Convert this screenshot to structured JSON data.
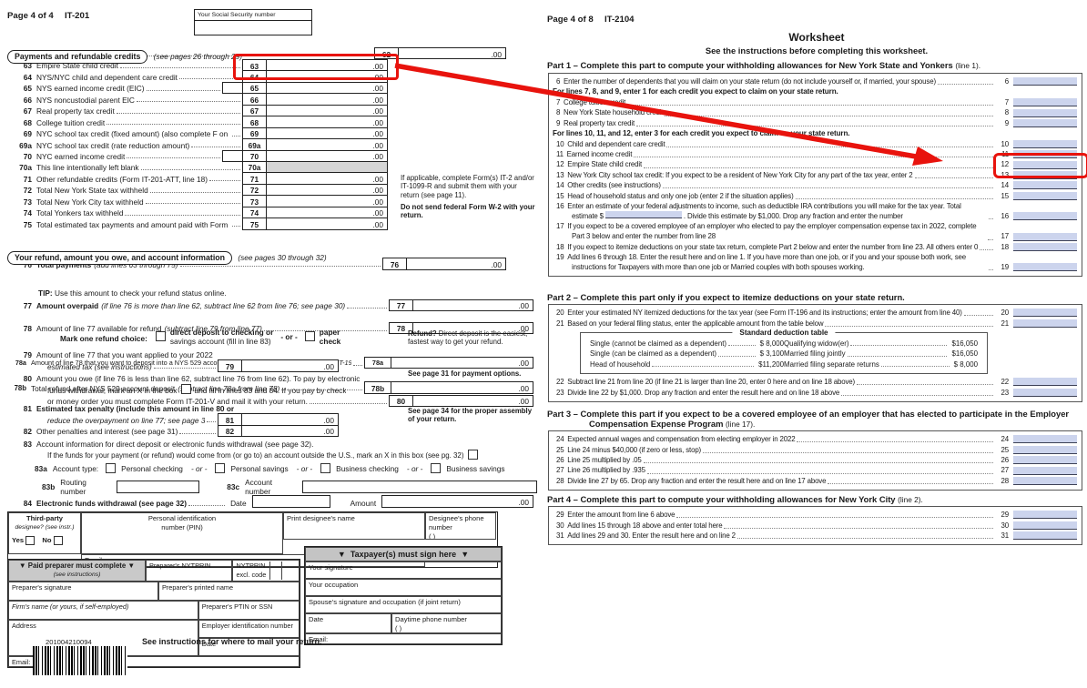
{
  "annotation_color": "#e8130d",
  "left_form": {
    "page_label": "Page 4 of 4",
    "form_id": "IT-201",
    "ssn_label": "Your Social Security number",
    "line62": {
      "num": "62",
      "label": "Enter amount from line 61",
      "cents": ".00"
    },
    "payments_section": {
      "title": "Payments and refundable credits",
      "note": "(see pages 26 through 29)"
    },
    "credit_lines": [
      {
        "num": "63",
        "label": "Empire State child credit",
        "cents": ".00",
        "highlight": true
      },
      {
        "num": "64",
        "label": "NYS/NYC child and dependent care credit",
        "cents": ".00"
      },
      {
        "num": "65",
        "label": "NYS earned income credit (EIC)",
        "cents": ".00",
        "stub": true
      },
      {
        "num": "66",
        "label": "NYS noncustodial parent EIC",
        "cents": ".00"
      },
      {
        "num": "67",
        "label": "Real property tax credit",
        "cents": ".00"
      },
      {
        "num": "68",
        "label": "College tuition credit",
        "cents": ".00"
      },
      {
        "num": "69",
        "label": "NYC school tax credit (fixed amount) (also complete F on page 1)",
        "cents": ".00"
      },
      {
        "num": "69a",
        "label": "NYC school tax credit (rate reduction amount)",
        "cents": ".00"
      },
      {
        "num": "70",
        "label": "NYC earned income credit",
        "cents": ".00",
        "stub": true
      },
      {
        "num": "70a",
        "label": "This line intentionally left blank",
        "gray": true
      },
      {
        "num": "71",
        "label": "Other refundable credits (Form IT-201-ATT, line 18)",
        "cents": ".00"
      },
      {
        "num": "72",
        "label": "Total New York State tax withheld",
        "cents": ".00"
      },
      {
        "num": "73",
        "label": "Total New York City tax withheld",
        "cents": ".00"
      },
      {
        "num": "74",
        "label": "Total Yonkers tax withheld",
        "cents": ".00"
      },
      {
        "num": "75",
        "label": "Total estimated tax payments and amount paid with Form IT-370",
        "cents": ".00"
      }
    ],
    "side_note_1": "If applicable, complete Form(s) IT-2 and/or IT-1099-R and submit them with your return (see page 11).",
    "side_note_2": "Do not send federal Form W-2 with your return.",
    "line76": {
      "num": "76",
      "label": "Total payments",
      "note": "(add lines 63 through 75)",
      "cents": ".00"
    },
    "refund_section": {
      "title": "Your refund, amount you owe, and account information",
      "note": "(see pages 30 through 32)"
    },
    "line77": {
      "num": "77",
      "label": "Amount overpaid",
      "note": "(if line 76 is more than line 62, subtract line 62 from line 76; see page 30)",
      "cents": ".00"
    },
    "line78": {
      "num": "78",
      "label": "Amount of line 77 available for refund",
      "note": "(subtract line 79 from line 77)",
      "cents": ".00"
    },
    "tip_bold": "TIP:",
    "tip_text": "Use this amount to check your refund status online.",
    "line78a": {
      "num": "78a",
      "label": "Amount of line 78 that you want to deposit into a NYS 529 account",
      "note": "(Form IT-195, line 4) (also submit Form IT-195)",
      "cents": ".00"
    },
    "line78b": {
      "num": "78b",
      "label": "Total refund after NYS 529 account deposit",
      "note": "(subtract line 78a from line 78)",
      "cents": ".00"
    },
    "refund_choice": {
      "label": "Mark one refund choice:",
      "opt1_line1": "direct deposit to checking or",
      "opt1_line2": "savings account (fill in line 83)",
      "separator": "- or -",
      "opt2_line1": "paper",
      "opt2_line2": "check"
    },
    "note_refund_bold": "Refund?",
    "note_refund": "Direct deposit is the easiest, fastest way to get your refund.",
    "note_payment": "See page 31 for payment options.",
    "note_assembly": "See page 34 for the proper assembly of your return.",
    "line79": {
      "num": "79",
      "label_1": "Amount of line 77 that you want applied to your 2022",
      "label_2": "estimated tax (see instructions)",
      "cents": ".00"
    },
    "line80": {
      "num": "80",
      "label_1": "Amount you owe (if line 76 is less than line 62, subtract line 76 from line 62). To pay by electronic",
      "label_2_pre": "funds withdrawal, mark an X in the box",
      "label_2_post": "and fill in lines 83 and 84. If you pay by check",
      "label_3": "or money order you must complete Form IT-201-V and mail it with your return.",
      "cents": ".00"
    },
    "line81": {
      "num": "81",
      "label_1": "Estimated tax penalty (include this amount in line 80 or",
      "label_2": "reduce the overpayment on line 77; see page 31)",
      "cents": ".00"
    },
    "line82": {
      "num": "82",
      "label": "Other penalties and interest (see page 31)",
      "cents": ".00"
    },
    "line83": {
      "num": "83",
      "label_1": "Account information for direct deposit or electronic funds withdrawal (see page 32).",
      "label_2": "If the funds for your payment (or refund) would come from (or go to) an account outside the U.S., mark an X in this box (see pg. 32)"
    },
    "line83a": {
      "num": "83a",
      "label": "Account type:",
      "separator": "- or -",
      "options": [
        "Personal checking",
        "Personal savings",
        "Business checking",
        "Business savings"
      ]
    },
    "line83b": {
      "num": "83b",
      "label": "Routing number"
    },
    "line83c": {
      "num": "83c",
      "label": "Account number"
    },
    "line84": {
      "num": "84",
      "label": "Electronic funds withdrawal (see page 32)",
      "date_label": "Date",
      "amount_label": "Amount",
      "cents": ".00"
    },
    "designee": {
      "title_1": "Third-party",
      "title_2": "designee? (see instr.)",
      "yes": "Yes",
      "no": "No",
      "name_label": "Print designee's name",
      "phone_label": "Designee's phone number",
      "phone_paren": "(        )",
      "pin_label_1": "Personal identification",
      "pin_label_2": "number (PIN)",
      "email_label": "Email:"
    },
    "preparer": {
      "heading": "Paid preparer must complete",
      "heading_note": "(see instructions)",
      "nytprin": "Preparer's NYTPRIN",
      "excl_1": "NYTPRIN",
      "excl_2": "excl. code",
      "signature": "Preparer's signature",
      "printed_name": "Preparer's printed name",
      "firm": "Firm's name (or yours, if self-employed)",
      "ptin": "Preparer's PTIN or SSN",
      "address": "Address",
      "ein": "Employer identification number",
      "date": "Date",
      "email": "Email:"
    },
    "taxpayer": {
      "heading": "Taxpayer(s) must sign here",
      "signature": "Your signature",
      "occupation": "Your occupation",
      "spouse": "Spouse's signature and occupation (if joint return)",
      "date": "Date",
      "phone": "Daytime phone number",
      "phone_paren": "(        )",
      "email": "Email:"
    },
    "footer": {
      "barcode_number": "201004210094",
      "mail_note": "See instructions for where to mail your return."
    }
  },
  "right_form": {
    "page_label": "Page 4 of 8",
    "form_id": "IT-2104",
    "title": "Worksheet",
    "subtitle": "See the instructions before completing this worksheet.",
    "part1": {
      "title": "Part 1 – Complete this part to compute your withholding allowances for New York State and Yonkers",
      "suffix": "(line 1).",
      "lines": [
        {
          "num": "6",
          "label": "Enter the number of dependents that you will claim on your state return (do not include yourself or, if married, your spouse)"
        },
        {
          "group": "For lines 7, 8, and 9, enter 1 for each credit you expect to claim on your state return."
        },
        {
          "num": "7",
          "label": "College tuition credit"
        },
        {
          "num": "8",
          "label": "New York State household credit"
        },
        {
          "num": "9",
          "label": "Real property tax credit"
        },
        {
          "group": "For lines 10, 11, and 12, enter 3 for each credit you expect to claim on your state return."
        },
        {
          "num": "10",
          "label": "Child and dependent care credit"
        },
        {
          "num": "11",
          "label": "Earned income credit"
        },
        {
          "num": "12",
          "label": "Empire State child credit",
          "highlight": true
        },
        {
          "num": "13",
          "label": "New York City school tax credit: If you expect to be a resident of New York City for any part of the tax year, enter 2"
        },
        {
          "num": "14",
          "label": "Other credits (see instructions)"
        },
        {
          "num": "15",
          "label": "Head of household status and only one job (enter 2 if the situation applies)"
        },
        {
          "num": "16",
          "label_pre": "Enter an estimate of your federal adjustments to income, such as deductible IRA contributions you will make for the tax year. Total estimate $",
          "label_post": ". Divide this estimate by $1,000. Drop any fraction and enter the number"
        },
        {
          "num": "17",
          "label": "If you expect to be a covered employee of an employer who elected to pay the employer compensation expense tax in 2022, complete Part 3 below and enter the number from line 28"
        },
        {
          "num": "18",
          "label": "If you expect to itemize deductions on your state tax return, complete Part 2 below and enter the number from line 23. All others enter 0"
        },
        {
          "num": "19",
          "label": "Add lines 6 through 18. Enter the result here and on line 1. If you have more than one job, or if you and your spouse both work, see instructions for Taxpayers with more than one job or Married couples with both spouses working."
        }
      ]
    },
    "part2": {
      "title": "Part 2 – Complete this part only if you expect to itemize deductions on your state return.",
      "suffix": "",
      "lines_top": [
        {
          "num": "20",
          "label": "Enter your estimated NY itemized deductions for the tax year (see Form IT-196 and its instructions; enter the amount from line 40)"
        },
        {
          "num": "21",
          "label": "Based on your federal filing status, enter the applicable amount from the table below"
        }
      ],
      "table": {
        "title": "Standard deduction table",
        "rows": [
          {
            "l": "Single (cannot be claimed as a dependent)",
            "lv": "$  8,000",
            "r": "Qualifying widow(er)",
            "rv": "$16,050"
          },
          {
            "l": "Single (can be claimed as a dependent)",
            "lv": "$  3,100",
            "r": "Married filing jointly",
            "rv": "$16,050"
          },
          {
            "l": "Head of household",
            "lv": "$11,200",
            "r": "Married filing separate returns",
            "rv": "$  8,000"
          }
        ]
      },
      "lines_bottom": [
        {
          "num": "22",
          "label": "Subtract line 21 from line 20 (if line 21 is larger than line 20, enter 0 here and on line 18 above)"
        },
        {
          "num": "23",
          "label": "Divide line 22 by $1,000. Drop any fraction and enter the result here and on line 18 above"
        }
      ]
    },
    "part3": {
      "title": "Part 3 – Complete this part if you expect to be a covered employee of an employer that has elected to participate in the Employer Compensation Expense Program",
      "suffix": "(line 17).",
      "lines": [
        {
          "num": "24",
          "label": "Expected annual wages and compensation from electing employer in 2022"
        },
        {
          "num": "25",
          "label": "Line 24 minus $40,000 (if zero or less, stop)"
        },
        {
          "num": "26",
          "label": "Line 25 multiplied by .05"
        },
        {
          "num": "27",
          "label": "Line 26 multiplied by .935"
        },
        {
          "num": "28",
          "label": "Divide line 27 by 65. Drop any fraction and enter the result here and on line 17 above"
        }
      ]
    },
    "part4": {
      "title": "Part 4 – Complete this part to compute your withholding allowances for New York City",
      "suffix": "(line 2).",
      "lines": [
        {
          "num": "29",
          "label": "Enter the amount from line 6 above"
        },
        {
          "num": "30",
          "label": "Add lines 15 through 18 above and enter total here"
        },
        {
          "num": "31",
          "label": "Add lines 29 and 30. Enter the result here and on line 2"
        }
      ]
    }
  }
}
